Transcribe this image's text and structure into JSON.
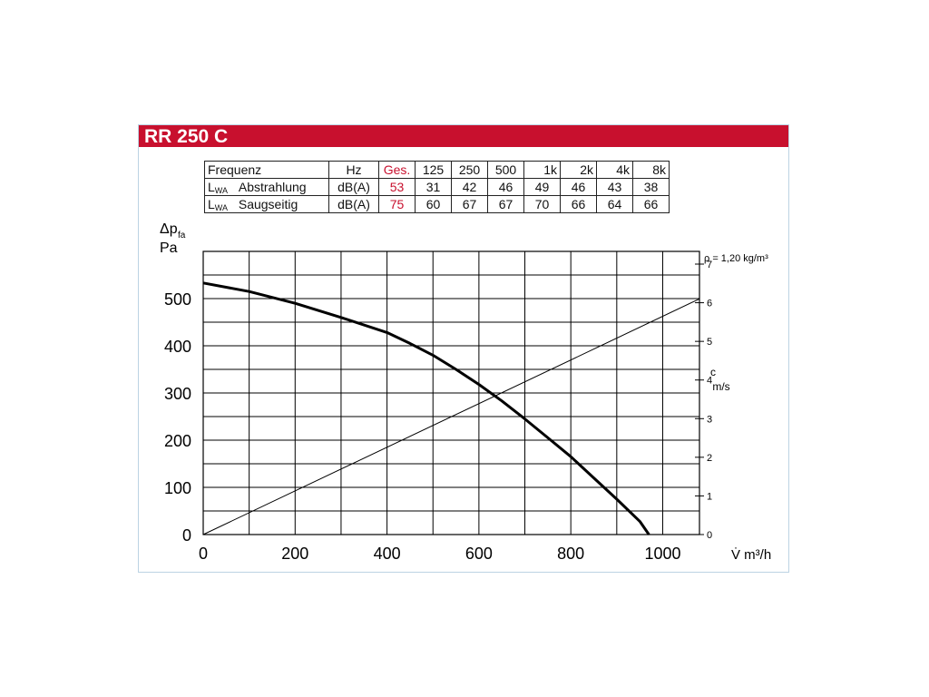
{
  "header": {
    "title": "RR 250 C"
  },
  "table": {
    "header_row": [
      "Frequenz",
      "Hz",
      "Ges.",
      "125",
      "250",
      "500",
      "1k",
      "2k",
      "4k",
      "8k"
    ],
    "rows": [
      {
        "symbol": "L",
        "symbol_sub": "WA",
        "label": "Abstrahlung",
        "unit": "dB(A)",
        "ges": "53",
        "values": [
          "31",
          "42",
          "46",
          "49",
          "46",
          "43",
          "38"
        ]
      },
      {
        "symbol": "L",
        "symbol_sub": "WA",
        "label": "Saugseitig",
        "unit": "dB(A)",
        "ges": "75",
        "values": [
          "60",
          "67",
          "67",
          "70",
          "66",
          "64",
          "66"
        ]
      }
    ]
  },
  "chart_data": {
    "type": "line",
    "xlabel": "V̇ m³/h",
    "ylabel": "Δp",
    "ylabel_sub": "fa",
    "ylabel_unit": "Pa",
    "y2label": "c",
    "y2label_unit": "m/s",
    "density_note": "ρ = 1,20 kg/m³",
    "xlim": [
      0,
      1080
    ],
    "ylim": [
      0,
      600
    ],
    "y2lim": [
      0,
      7
    ],
    "x_ticks": [
      "0",
      "200",
      "400",
      "600",
      "800",
      "1000"
    ],
    "y_ticks": [
      "0",
      "100",
      "200",
      "300",
      "400",
      "500"
    ],
    "y2_ticks": [
      "0",
      "1",
      "2",
      "3",
      "4",
      "5",
      "6",
      "7"
    ],
    "grid": true,
    "series": [
      {
        "name": "",
        "axis": "left",
        "x": [
          0,
          100,
          200,
          300,
          400,
          450,
          500,
          550,
          600,
          650,
          700,
          750,
          800,
          850,
          900,
          950,
          970
        ],
        "y": [
          533,
          515,
          490,
          460,
          428,
          405,
          380,
          350,
          318,
          283,
          245,
          205,
          165,
          120,
          75,
          28,
          0
        ]
      },
      {
        "name": "",
        "axis": "right",
        "x": [
          0,
          1080
        ],
        "y": [
          0,
          6.1
        ]
      }
    ],
    "colors": {
      "curve": "#000000",
      "grid": "#000000",
      "header": "#c8102e"
    }
  }
}
